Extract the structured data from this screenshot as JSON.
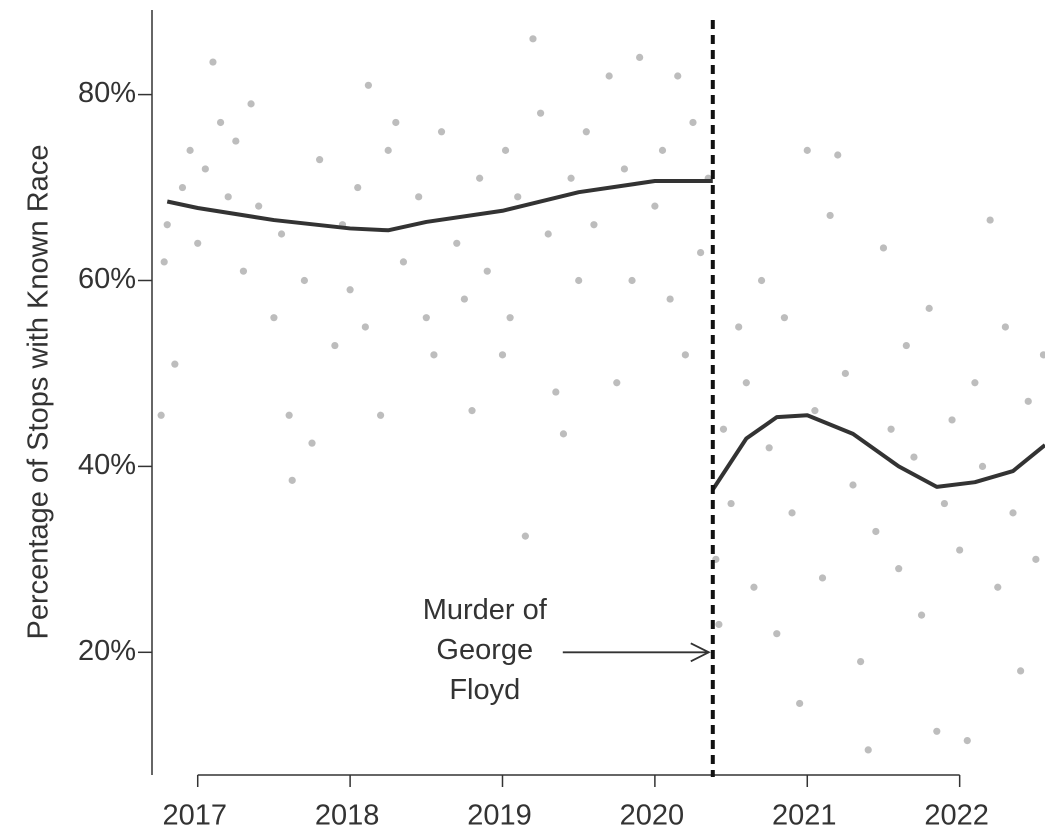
{
  "chart_data": {
    "type": "scatter",
    "y_label": "Percentage of Stops with Known Race",
    "xlim": [
      2016.7,
      2022.56
    ],
    "ylim": [
      6.8,
      89.1
    ],
    "xticks": [
      2017,
      2018,
      2019,
      2020,
      2021,
      2022
    ],
    "yticks": [
      {
        "value": 20,
        "label": "20%"
      },
      {
        "value": 40,
        "label": "40%"
      },
      {
        "value": 60,
        "label": "60%"
      },
      {
        "value": 80,
        "label": "80%"
      }
    ],
    "points": {
      "color": "#bdbdbd",
      "x": [
        2016.76,
        2016.78,
        2016.8,
        2016.85,
        2016.9,
        2016.95,
        2017.0,
        2017.05,
        2017.1,
        2017.15,
        2017.2,
        2017.25,
        2017.3,
        2017.35,
        2017.4,
        2017.5,
        2017.55,
        2017.6,
        2017.62,
        2017.7,
        2017.75,
        2017.8,
        2017.9,
        2017.95,
        2018.0,
        2018.05,
        2018.1,
        2018.12,
        2018.2,
        2018.25,
        2018.3,
        2018.35,
        2018.45,
        2018.5,
        2018.55,
        2018.6,
        2018.7,
        2018.75,
        2018.8,
        2018.85,
        2018.9,
        2019.0,
        2019.02,
        2019.05,
        2019.1,
        2019.15,
        2019.2,
        2019.25,
        2019.3,
        2019.35,
        2019.4,
        2019.45,
        2019.5,
        2019.55,
        2019.6,
        2019.7,
        2019.75,
        2019.8,
        2019.85,
        2019.9,
        2020.0,
        2020.05,
        2020.1,
        2020.15,
        2020.2,
        2020.25,
        2020.3,
        2020.35,
        2020.4,
        2020.42,
        2020.45,
        2020.5,
        2020.55,
        2020.6,
        2020.65,
        2020.7,
        2020.75,
        2020.8,
        2020.85,
        2020.9,
        2020.95,
        2021.0,
        2021.05,
        2021.1,
        2021.15,
        2021.2,
        2021.25,
        2021.3,
        2021.35,
        2021.4,
        2021.45,
        2021.5,
        2021.55,
        2021.6,
        2021.65,
        2021.7,
        2021.75,
        2021.8,
        2021.85,
        2021.9,
        2021.95,
        2022.0,
        2022.05,
        2022.1,
        2022.15,
        2022.2,
        2022.25,
        2022.3,
        2022.35,
        2022.4,
        2022.45,
        2022.5,
        2022.55
      ],
      "values": [
        45.5,
        62,
        66,
        51,
        70,
        74,
        64,
        72,
        83.5,
        77,
        69,
        75,
        61,
        79,
        68,
        56,
        65,
        45.5,
        38.5,
        60,
        42.5,
        73,
        53,
        66,
        59,
        70,
        55,
        81,
        45.5,
        74,
        77,
        62,
        69,
        56,
        52,
        76,
        64,
        58,
        46,
        71,
        61,
        52,
        74,
        56,
        69,
        32.5,
        86,
        78,
        65,
        48,
        43.5,
        71,
        60,
        76,
        66,
        82,
        49,
        72,
        60,
        84,
        68,
        74,
        58,
        82,
        52,
        77,
        63,
        71,
        30,
        23,
        44,
        36,
        55,
        49,
        27,
        60,
        42,
        22,
        56,
        35,
        14.5,
        74,
        46,
        28,
        67,
        73.5,
        50,
        38,
        19,
        9.5,
        33,
        63.5,
        44,
        29,
        53,
        41,
        24,
        57,
        11.5,
        36,
        45,
        31,
        10.5,
        49,
        40,
        66.5,
        27,
        55,
        35,
        18,
        47,
        30,
        52
      ]
    },
    "trend": [
      {
        "color": "#333333",
        "x": [
          2016.8,
          2017.0,
          2017.5,
          2018.0,
          2018.25,
          2018.5,
          2019.0,
          2019.5,
          2020.0,
          2020.38
        ],
        "values": [
          68.5,
          67.8,
          66.5,
          65.6,
          65.4,
          66.3,
          67.5,
          69.5,
          70.7,
          70.7
        ]
      },
      {
        "color": "#333333",
        "x": [
          2020.38,
          2020.6,
          2020.8,
          2021.0,
          2021.3,
          2021.6,
          2021.85,
          2022.1,
          2022.35,
          2022.56
        ],
        "values": [
          37.5,
          43,
          45.3,
          45.5,
          43.5,
          40,
          37.8,
          38.3,
          39.5,
          42.3
        ]
      }
    ],
    "annotation": {
      "lines": [
        "Murder of",
        "George",
        "Floyd"
      ],
      "x": 2020.38,
      "y": 20
    }
  }
}
